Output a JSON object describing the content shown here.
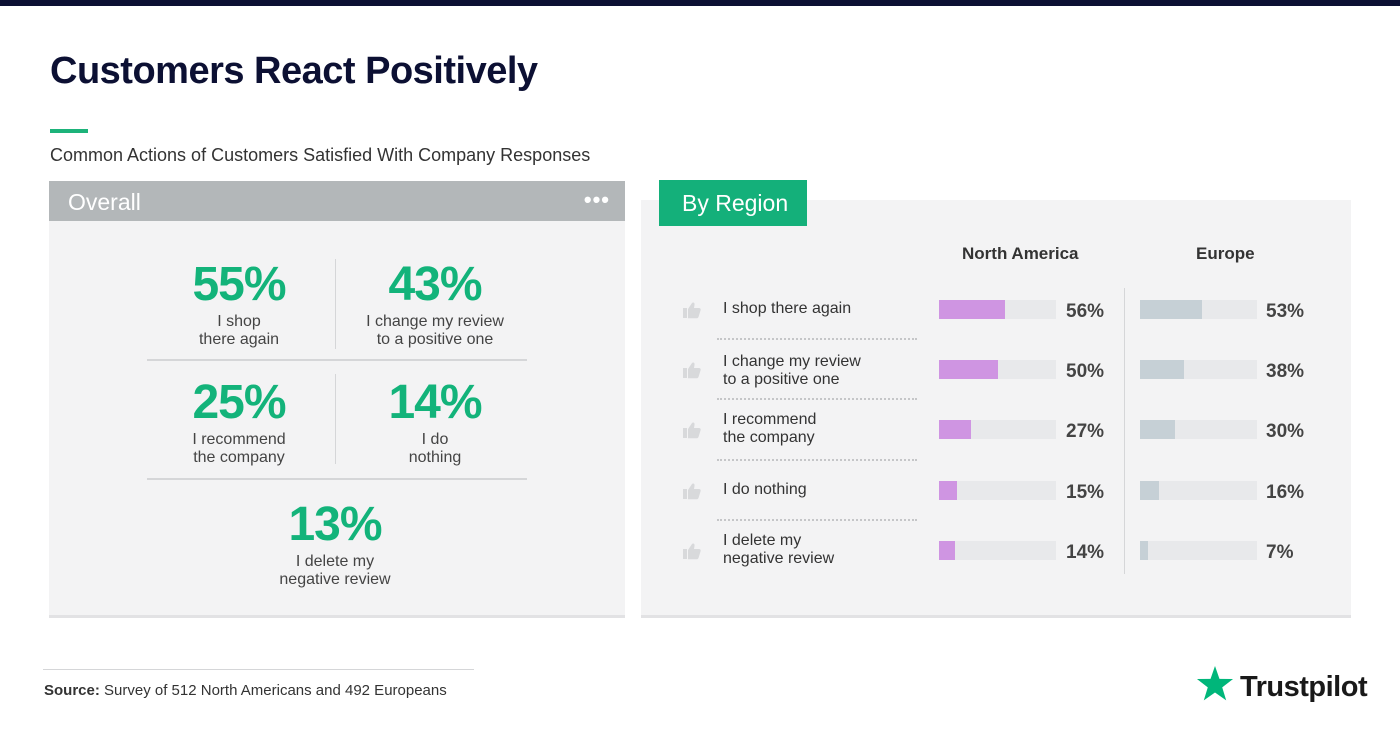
{
  "title": "Customers React Positively",
  "subtitle": "Common Actions of Customers Satisfied With Company Responses",
  "overall": {
    "title": "Overall",
    "stats": [
      {
        "value": "55%",
        "label": "I shop\nthere again"
      },
      {
        "value": "43%",
        "label": "I change my review\nto a positive one"
      },
      {
        "value": "25%",
        "label": "I recommend\nthe company"
      },
      {
        "value": "14%",
        "label": "I do\nnothing"
      },
      {
        "value": "13%",
        "label": "I delete my\nnegative review"
      }
    ]
  },
  "region": {
    "tab_label": "By Region",
    "columns": [
      "North America",
      "Europe"
    ]
  },
  "chart_data": {
    "type": "bar",
    "title": "By Region",
    "categories": [
      "I shop there again",
      "I change my review\nto a positive one",
      "I recommend\nthe company",
      "I do nothing",
      "I delete my\nnegative review"
    ],
    "series": [
      {
        "name": "North America",
        "values": [
          56,
          50,
          27,
          15,
          14
        ],
        "labels": [
          "56%",
          "50%",
          "27%",
          "15%",
          "14%"
        ],
        "color": "#cf95e2"
      },
      {
        "name": "Europe",
        "values": [
          53,
          38,
          30,
          16,
          7
        ],
        "labels": [
          "53%",
          "38%",
          "30%",
          "16%",
          "7%"
        ],
        "color": "#c6d0d6"
      }
    ],
    "xlim": [
      0,
      100
    ],
    "orientation": "horizontal"
  },
  "source": {
    "label": "Source:",
    "text": "Survey of 512 North Americans and 492 Europeans"
  },
  "brand": {
    "name": "Trustpilot",
    "star_color": "#00b67a"
  },
  "colors": {
    "accent": "#13b37a",
    "navy": "#0c1033",
    "na_bar": "#cf95e2",
    "eu_bar": "#c6d0d6"
  }
}
